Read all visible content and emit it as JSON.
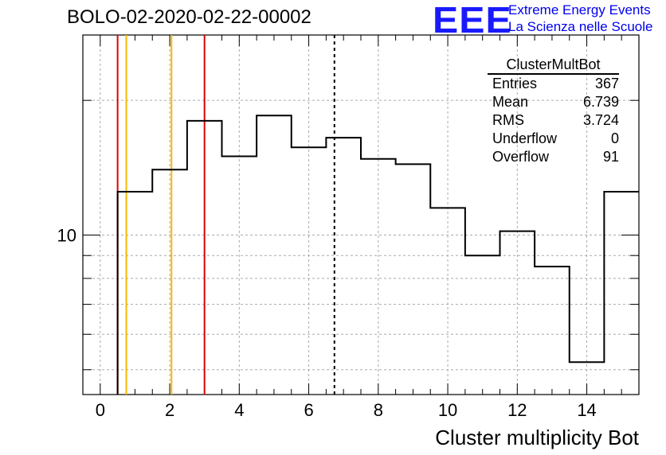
{
  "header": {
    "run_title": "BOLO-02-2020-02-22-00002",
    "logo_text": "EEE",
    "org_line1": "Extreme Energy Events",
    "org_line2": "La Scienza nelle Scuole",
    "brand_color": "#1a1aff"
  },
  "stats": {
    "title": "ClusterMultBot",
    "rows": [
      {
        "label": "Entries",
        "value": "367"
      },
      {
        "label": "Mean",
        "value": "6.739"
      },
      {
        "label": "RMS",
        "value": "3.724"
      },
      {
        "label": "Underflow",
        "value": "0"
      },
      {
        "label": "Overflow",
        "value": "91"
      }
    ]
  },
  "chart_data": {
    "type": "histogram",
    "title": "BOLO-02-2020-02-22-00002",
    "xlabel": "Cluster multiplicity Bot",
    "ylabel": "",
    "xlim": [
      -0.5,
      15.5
    ],
    "ylim": [
      4.4,
      28
    ],
    "yscale": "log",
    "grid": true,
    "bin_edges": [
      -0.5,
      0.5,
      1.5,
      2.5,
      3.5,
      4.5,
      5.5,
      6.5,
      7.5,
      8.5,
      9.5,
      10.5,
      11.5,
      12.5,
      13.5,
      14.5,
      15.5
    ],
    "values": [
      0,
      12.5,
      14,
      18,
      15,
      18.5,
      15.7,
      16.5,
      14.8,
      14.4,
      11.5,
      9,
      10.2,
      8.5,
      5.2,
      12.5
    ],
    "x_ticks": [
      0,
      2,
      4,
      6,
      8,
      10,
      12,
      14
    ],
    "y_tick_labels": [
      {
        "value": 10,
        "label": "10"
      }
    ],
    "vertical_lines": [
      {
        "x": 0.5,
        "color": "#e00000",
        "style": "solid"
      },
      {
        "x": 0.75,
        "color": "#f5b800",
        "style": "solid"
      },
      {
        "x": 2.05,
        "color": "#f5b800",
        "style": "solid"
      },
      {
        "x": 3.0,
        "color": "#e00000",
        "style": "solid"
      },
      {
        "x": 6.739,
        "color": "#000000",
        "style": "dashed"
      }
    ]
  }
}
